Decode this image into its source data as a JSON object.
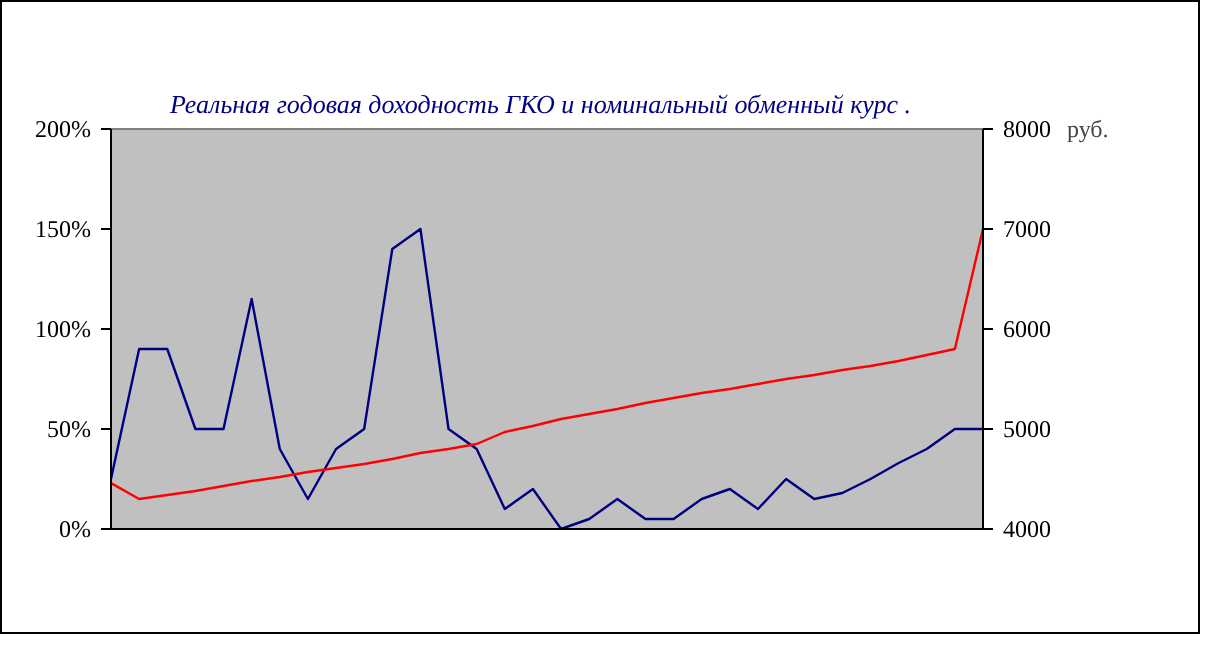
{
  "chart_data": {
    "type": "line",
    "title": "Реальная годовая доходность ГКО  и  номинальный обменный курс .",
    "y2label": "руб.",
    "categories": [
      null,
      null,
      null,
      null,
      null,
      null,
      null,
      null,
      null,
      null,
      null,
      null,
      null,
      null,
      null,
      null,
      null,
      null,
      null,
      null,
      null,
      null,
      null,
      null,
      null,
      null,
      null,
      null,
      null,
      null,
      null,
      null
    ],
    "ylim": [
      0,
      200
    ],
    "yticks": [
      {
        "value": 0,
        "label": "0%"
      },
      {
        "value": 50,
        "label": "50%"
      },
      {
        "value": 100,
        "label": "100%"
      },
      {
        "value": 150,
        "label": "150%"
      },
      {
        "value": 200,
        "label": "200%"
      }
    ],
    "y2lim": [
      4000,
      8000
    ],
    "y2ticks": [
      4000,
      5000,
      6000,
      7000,
      8000
    ],
    "grid": false,
    "tick_labels": "y",
    "series": [
      {
        "color": "#000080",
        "values": [
          25,
          90,
          90,
          50,
          50,
          115,
          40,
          15,
          40,
          50,
          140,
          150,
          50,
          40,
          10,
          20,
          0,
          5,
          15,
          5,
          5,
          15,
          20,
          10,
          25,
          15,
          18,
          25,
          33,
          40,
          50,
          50
        ]
      },
      {
        "color": "#ff0000",
        "axis": "y2",
        "values": [
          4460,
          4300,
          4340,
          4380,
          4430,
          4480,
          4520,
          4570,
          4610,
          4650,
          4700,
          4760,
          4800,
          4850,
          4970,
          5030,
          5100,
          5150,
          5200,
          5260,
          5310,
          5360,
          5400,
          5450,
          5500,
          5540,
          5590,
          5630,
          5680,
          5740,
          5800,
          7000
        ]
      }
    ]
  }
}
